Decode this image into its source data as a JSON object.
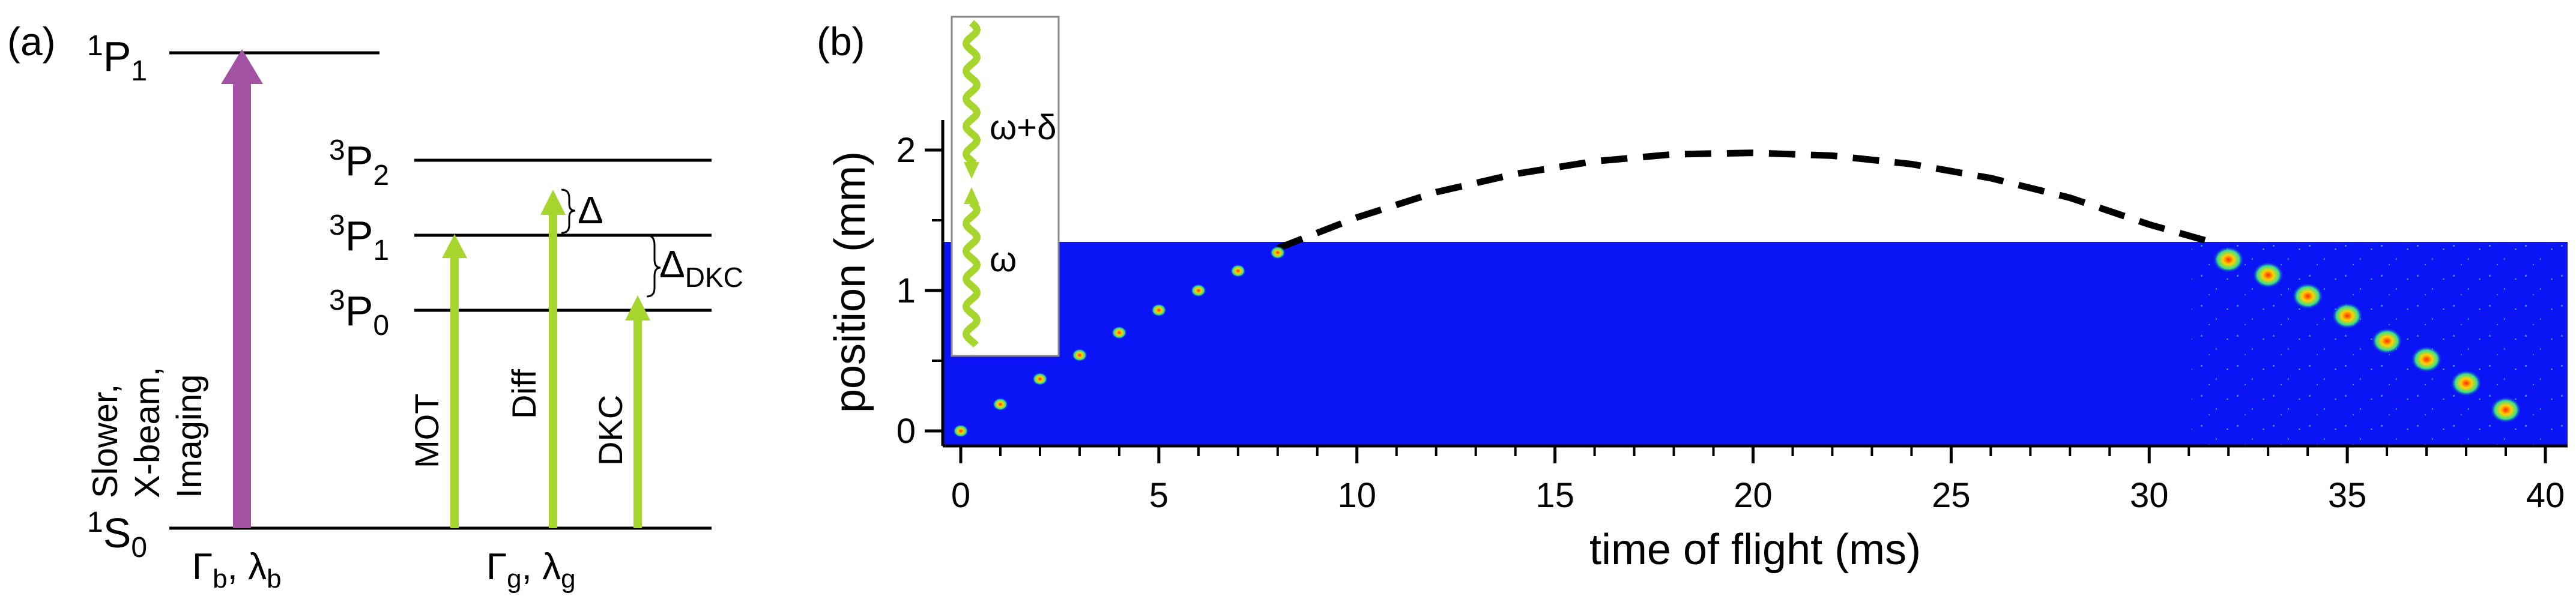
{
  "panel_a": {
    "label": "(a)",
    "levels": {
      "s0": {
        "sup": "1",
        "name": "S",
        "sub": "0"
      },
      "p1_singlet": {
        "sup": "1",
        "name": "P",
        "sub": "1"
      },
      "p2": {
        "sup": "3",
        "name": "P",
        "sub": "2"
      },
      "p1": {
        "sup": "3",
        "name": "P",
        "sub": "1"
      },
      "p0": {
        "sup": "3",
        "name": "P",
        "sub": "0"
      }
    },
    "blue_arrow_lines": [
      "Slower,",
      "X-beam,",
      "Imaging"
    ],
    "green_arrows": [
      "MOT",
      "Diff",
      "DKC"
    ],
    "delta": "Δ",
    "delta_dkc": {
      "main": "Δ",
      "sub": "DKC"
    },
    "bottom_blue": {
      "g": "Γ",
      "g_sub": "b",
      "sep": ", ",
      "l": "λ",
      "l_sub": "b"
    },
    "bottom_green": {
      "g": "Γ",
      "g_sub": "g",
      "sep": ", ",
      "l": "λ",
      "l_sub": "g"
    },
    "colors": {
      "purple": "#a352a3",
      "green": "#a6d62e"
    }
  },
  "panel_b": {
    "label": "(b)",
    "xlabel": "time of flight (ms)",
    "ylabel": "position (mm)",
    "xticks": [
      "0",
      "5",
      "10",
      "15",
      "20",
      "25",
      "30",
      "35",
      "40"
    ],
    "yticks": [
      "0",
      "1",
      "2"
    ],
    "legend": {
      "top": "ω+δ",
      "bottom": "ω"
    },
    "colors": {
      "image_bg": "#0a14f5",
      "dashed": "#000000"
    }
  },
  "chart_data": {
    "type": "scatter",
    "xlabel": "time of flight (ms)",
    "ylabel": "position (mm)",
    "xlim": [
      -0.4,
      40.5
    ],
    "ylim": [
      -0.1,
      2.3
    ],
    "series": [
      {
        "values": [
          {
            "x": 0,
            "y": 0.0
          },
          {
            "x": 1,
            "y": 0.19
          },
          {
            "x": 2,
            "y": 0.37
          },
          {
            "x": 3,
            "y": 0.54
          },
          {
            "x": 4,
            "y": 0.7
          },
          {
            "x": 5,
            "y": 0.86
          },
          {
            "x": 6,
            "y": 1.0
          },
          {
            "x": 7,
            "y": 1.14
          },
          {
            "x": 8,
            "y": 1.27
          },
          {
            "x": 32,
            "y": 1.22
          },
          {
            "x": 33,
            "y": 1.11
          },
          {
            "x": 34,
            "y": 0.96
          },
          {
            "x": 35,
            "y": 0.82
          },
          {
            "x": 36,
            "y": 0.64
          },
          {
            "x": 37,
            "y": 0.51
          },
          {
            "x": 38,
            "y": 0.34
          },
          {
            "x": 39,
            "y": 0.15
          }
        ]
      },
      {
        "style": "dashed",
        "values": [
          {
            "x": 8,
            "y": 1.3
          },
          {
            "x": 10,
            "y": 1.52
          },
          {
            "x": 12,
            "y": 1.7
          },
          {
            "x": 14,
            "y": 1.83
          },
          {
            "x": 16,
            "y": 1.92
          },
          {
            "x": 18,
            "y": 1.97
          },
          {
            "x": 20,
            "y": 1.98
          },
          {
            "x": 22,
            "y": 1.96
          },
          {
            "x": 24,
            "y": 1.9
          },
          {
            "x": 26,
            "y": 1.8
          },
          {
            "x": 28,
            "y": 1.66
          },
          {
            "x": 30,
            "y": 1.47
          },
          {
            "x": 31.5,
            "y": 1.35
          }
        ]
      }
    ]
  }
}
